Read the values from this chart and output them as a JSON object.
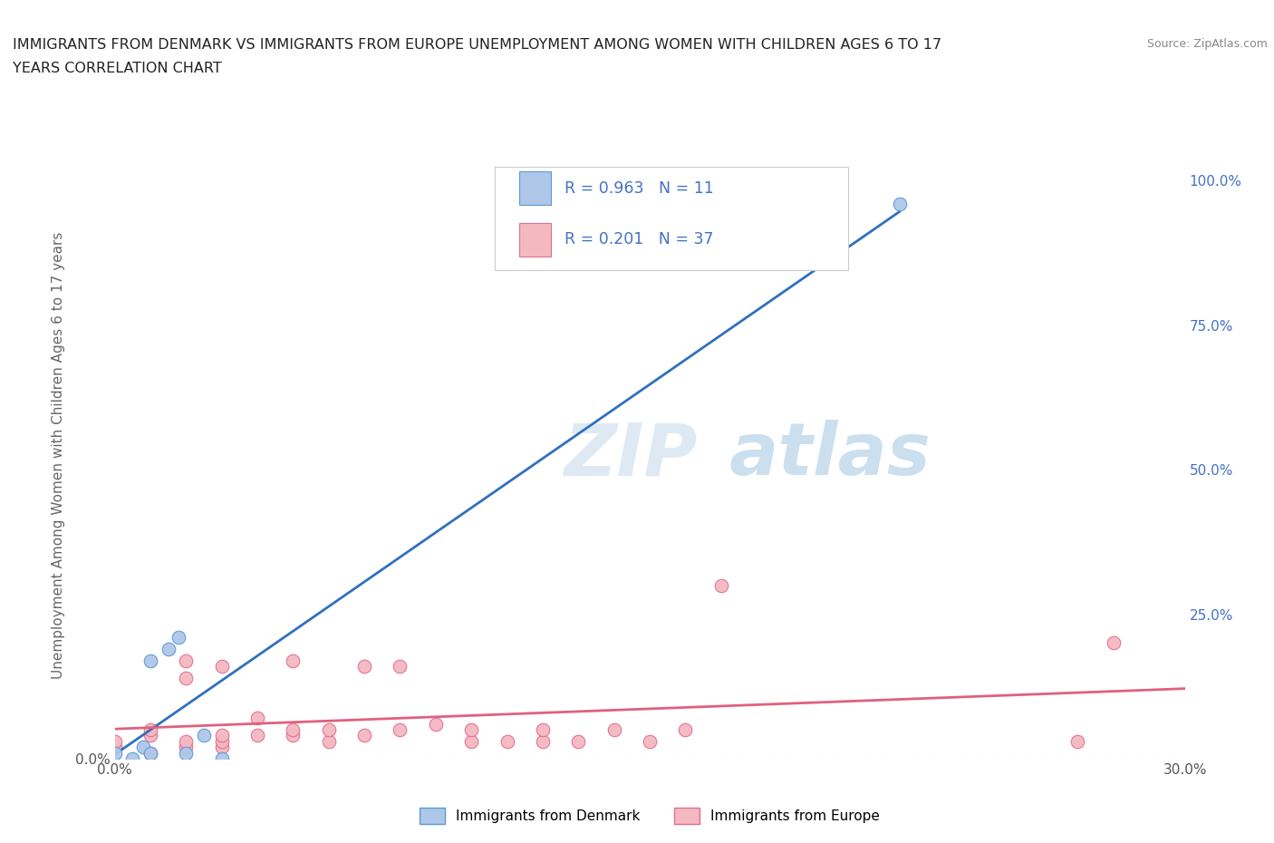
{
  "title_line1": "IMMIGRANTS FROM DENMARK VS IMMIGRANTS FROM EUROPE UNEMPLOYMENT AMONG WOMEN WITH CHILDREN AGES 6 TO 17",
  "title_line2": "YEARS CORRELATION CHART",
  "source": "Source: ZipAtlas.com",
  "ylabel": "Unemployment Among Women with Children Ages 6 to 17 years",
  "xlim": [
    0.0,
    0.3
  ],
  "ylim": [
    0.0,
    1.05
  ],
  "xticks": [
    0.0,
    0.05,
    0.1,
    0.15,
    0.2,
    0.25,
    0.3
  ],
  "xticklabels": [
    "0.0%",
    "",
    "",
    "",
    "",
    "",
    "30.0%"
  ],
  "yticks_left": [
    0.0
  ],
  "ytick_left_labels": [
    "0.0%"
  ],
  "yticks_right": [
    0.0,
    0.25,
    0.5,
    0.75,
    1.0
  ],
  "yticklabels_right": [
    "",
    "25.0%",
    "50.0%",
    "75.0%",
    "100.0%"
  ],
  "denmark_color": "#aec6e8",
  "denmark_edge": "#5b9bd5",
  "europe_color": "#f4b8c1",
  "europe_edge": "#e07090",
  "denmark_line_color": "#3070c0",
  "europe_line_color": "#e06080",
  "legend_R_denmark": "0.963",
  "legend_N_denmark": "11",
  "legend_R_europe": "0.201",
  "legend_N_europe": "37",
  "denmark_x": [
    0.0,
    0.005,
    0.008,
    0.01,
    0.01,
    0.015,
    0.018,
    0.02,
    0.025,
    0.03,
    0.22
  ],
  "denmark_y": [
    0.01,
    0.0,
    0.02,
    0.01,
    0.17,
    0.19,
    0.21,
    0.01,
    0.04,
    0.0,
    0.96
  ],
  "europe_x": [
    0.0,
    0.0,
    0.01,
    0.01,
    0.01,
    0.02,
    0.02,
    0.02,
    0.02,
    0.03,
    0.03,
    0.03,
    0.03,
    0.04,
    0.04,
    0.05,
    0.05,
    0.05,
    0.06,
    0.06,
    0.07,
    0.07,
    0.08,
    0.08,
    0.09,
    0.1,
    0.1,
    0.11,
    0.12,
    0.12,
    0.13,
    0.14,
    0.15,
    0.16,
    0.17,
    0.27,
    0.28
  ],
  "europe_y": [
    0.02,
    0.03,
    0.01,
    0.04,
    0.05,
    0.02,
    0.03,
    0.14,
    0.17,
    0.02,
    0.03,
    0.04,
    0.16,
    0.04,
    0.07,
    0.04,
    0.05,
    0.17,
    0.03,
    0.05,
    0.04,
    0.16,
    0.05,
    0.16,
    0.06,
    0.03,
    0.05,
    0.03,
    0.03,
    0.05,
    0.03,
    0.05,
    0.03,
    0.05,
    0.3,
    0.03,
    0.2
  ],
  "watermark_zip": "ZIP",
  "watermark_atlas": "atlas",
  "background_color": "#ffffff",
  "grid_color": "#cccccc",
  "legend_label_dk": "Immigrants from Denmark",
  "legend_label_eu": "Immigrants from Europe",
  "val_color": "#4472c4",
  "title_color": "#222222",
  "source_color": "#888888",
  "ylabel_color": "#666666"
}
